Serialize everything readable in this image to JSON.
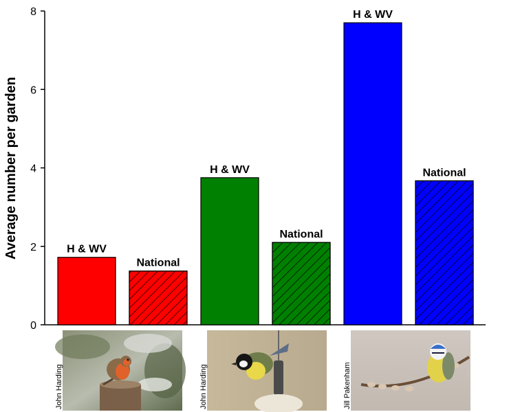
{
  "chart_data": {
    "type": "bar",
    "ylabel": "Average number per garden",
    "ylim": [
      0,
      8
    ],
    "yticks": [
      0,
      2,
      4,
      6,
      8
    ],
    "grid": false,
    "bars": [
      {
        "label": "H & WV",
        "value": 1.72,
        "color": "#ff0000",
        "hatched": false
      },
      {
        "label": "National",
        "value": 1.37,
        "color": "#ff0000",
        "hatched": true
      },
      {
        "label": "H & WV",
        "value": 3.75,
        "color": "#008000",
        "hatched": false
      },
      {
        "label": "National",
        "value": 2.1,
        "color": "#008000",
        "hatched": true
      },
      {
        "label": "H & WV",
        "value": 7.7,
        "color": "#0000ff",
        "hatched": false
      },
      {
        "label": "National",
        "value": 3.67,
        "color": "#0000ff",
        "hatched": true
      }
    ]
  },
  "photos": [
    {
      "subject": "robin",
      "credit": "John Harding"
    },
    {
      "subject": "great tit",
      "credit": "John Harding"
    },
    {
      "subject": "blue tit",
      "credit": "Jill Pakenham"
    }
  ]
}
